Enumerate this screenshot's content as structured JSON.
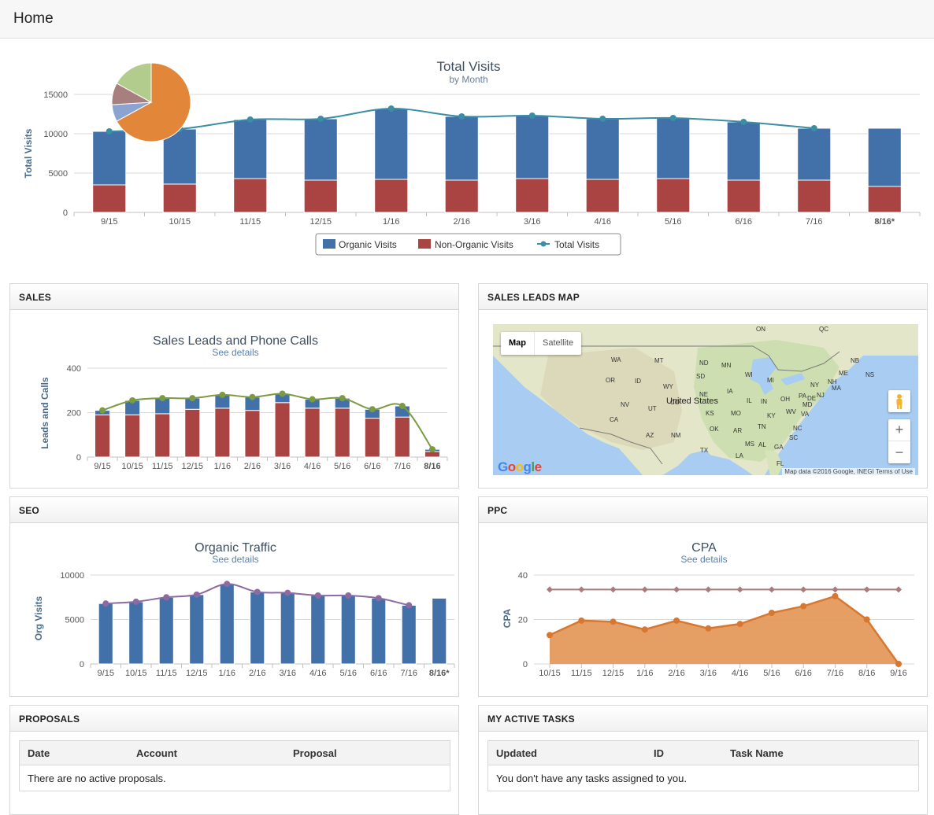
{
  "header": {
    "title": "Home"
  },
  "total_visits": {
    "title": "Total Visits",
    "subtitle": "by Month",
    "ylabel": "Total Visits",
    "legend": {
      "organic": "Organic Visits",
      "non_organic": "Non-Organic Visits",
      "total": "Total Visits"
    },
    "colors": {
      "organic": "#4270a8",
      "non_organic": "#a94442",
      "total": "#3a8ea5"
    }
  },
  "sales": {
    "heading": "SALES",
    "chart_title": "Sales Leads and Phone Calls",
    "link": "See details",
    "ylabel": "Leads and Calls"
  },
  "map_panel": {
    "heading": "SALES LEADS MAP",
    "map_label": "Map",
    "satellite_label": "Satellite",
    "country_label": "United States",
    "google": "Google",
    "footer": "Map data ©2016 Google, INEGI   Terms of Use",
    "zoom_in": "+",
    "zoom_out": "−",
    "states": [
      "WA",
      "MT",
      "ND",
      "MN",
      "OR",
      "ID",
      "SD",
      "WI",
      "MI",
      "WY",
      "NV",
      "UT",
      "NE",
      "IA",
      "IL",
      "IN",
      "OH",
      "PA",
      "CA",
      "KS",
      "MO",
      "KY",
      "WV",
      "VA",
      "MD",
      "DE",
      "NJ",
      "NY",
      "CO",
      "OK",
      "AR",
      "TN",
      "NC",
      "AZ",
      "NM",
      "MS",
      "AL",
      "GA",
      "SC",
      "TX",
      "LA",
      "FL",
      "ME",
      "NH",
      "MA",
      "NB",
      "NS",
      "ON",
      "QC"
    ]
  },
  "seo": {
    "heading": "SEO",
    "chart_title": "Organic Traffic",
    "link": "See details",
    "ylabel": "Org Visits"
  },
  "ppc": {
    "heading": "PPC",
    "chart_title": "CPA",
    "link": "See details",
    "ylabel": "CPA"
  },
  "proposals": {
    "heading": "PROPOSALS",
    "columns": [
      "Date",
      "Account",
      "Proposal"
    ],
    "empty": "There are no active proposals."
  },
  "tasks": {
    "heading": "MY ACTIVE TASKS",
    "columns": [
      "Updated",
      "ID",
      "Task Name"
    ],
    "empty": "You don't have any tasks assigned to you."
  },
  "chart_data": [
    {
      "type": "bar",
      "title": "Total Visits",
      "subtitle": "by Month",
      "ylabel": "Total Visits",
      "ylim": [
        0,
        15000
      ],
      "yticks": [
        0,
        5000,
        10000,
        15000
      ],
      "categories": [
        "9/15",
        "10/15",
        "11/15",
        "12/15",
        "1/16",
        "2/16",
        "3/16",
        "4/16",
        "5/16",
        "6/16",
        "7/16",
        "8/16*"
      ],
      "stacked": true,
      "series": [
        {
          "name": "Non-Organic Visits",
          "values": [
            3500,
            3600,
            4300,
            4100,
            4200,
            4100,
            4300,
            4200,
            4300,
            4100,
            4100,
            3300
          ]
        },
        {
          "name": "Organic Visits",
          "values": [
            6800,
            7000,
            7500,
            7800,
            9000,
            8100,
            8000,
            7700,
            7700,
            7400,
            6600,
            7400
          ]
        },
        {
          "name": "Total Visits",
          "type": "line",
          "values": [
            10300,
            10600,
            11800,
            11900,
            13200,
            12200,
            12300,
            11900,
            12000,
            11500,
            10700,
            null
          ]
        }
      ],
      "inset_pie": {
        "type": "pie",
        "slices": [
          {
            "value": 67,
            "color": "#e2873a"
          },
          {
            "value": 7,
            "color": "#8aa3d1"
          },
          {
            "value": 9,
            "color": "#a87f7f"
          },
          {
            "value": 17,
            "color": "#b2cc8d"
          }
        ]
      },
      "legend": "bottom"
    },
    {
      "type": "bar",
      "title": "Sales Leads and Phone Calls",
      "ylabel": "Leads and Calls",
      "ylim": [
        0,
        400
      ],
      "yticks": [
        0,
        200,
        400
      ],
      "categories": [
        "9/15",
        "10/15",
        "11/15",
        "12/15",
        "1/16",
        "2/16",
        "3/16",
        "4/16",
        "5/16",
        "6/16",
        "7/16",
        "8/16"
      ],
      "stacked": true,
      "series": [
        {
          "values": [
            190,
            190,
            195,
            215,
            220,
            210,
            245,
            220,
            220,
            175,
            180,
            25
          ]
        },
        {
          "values": [
            20,
            65,
            70,
            50,
            60,
            60,
            40,
            40,
            45,
            40,
            50,
            10
          ]
        },
        {
          "type": "line",
          "values": [
            210,
            255,
            265,
            265,
            280,
            270,
            285,
            260,
            265,
            215,
            230,
            35
          ]
        }
      ]
    },
    {
      "type": "bar",
      "title": "Organic Traffic",
      "ylabel": "Org Visits",
      "ylim": [
        0,
        10000
      ],
      "yticks": [
        0,
        5000,
        10000
      ],
      "categories": [
        "9/15",
        "10/15",
        "11/15",
        "12/15",
        "1/16",
        "2/16",
        "3/16",
        "4/16",
        "5/16",
        "6/16",
        "7/16",
        "8/16*"
      ],
      "series": [
        {
          "values": [
            6800,
            7000,
            7500,
            7800,
            9000,
            8100,
            8000,
            7700,
            7700,
            7400,
            6600,
            7400
          ]
        },
        {
          "type": "line",
          "values": [
            6800,
            7000,
            7500,
            7800,
            9000,
            8100,
            8000,
            7700,
            7700,
            7400,
            6600,
            null
          ]
        }
      ]
    },
    {
      "type": "area",
      "title": "CPA",
      "ylabel": "CPA",
      "ylim": [
        0,
        40
      ],
      "yticks": [
        0,
        20,
        40
      ],
      "categories": [
        "10/15",
        "11/15",
        "12/15",
        "1/16",
        "2/16",
        "3/16",
        "4/16",
        "5/16",
        "6/16",
        "7/16",
        "8/16",
        "9/16"
      ],
      "series": [
        {
          "type": "area",
          "values": [
            13,
            19.5,
            19,
            15.5,
            19.5,
            16,
            18,
            23,
            26,
            30.5,
            20,
            0
          ]
        },
        {
          "type": "line",
          "values": [
            33.5,
            33.5,
            33.5,
            33.5,
            33.5,
            33.5,
            33.5,
            33.5,
            33.5,
            33.5,
            33.5,
            33.5
          ]
        }
      ]
    }
  ]
}
